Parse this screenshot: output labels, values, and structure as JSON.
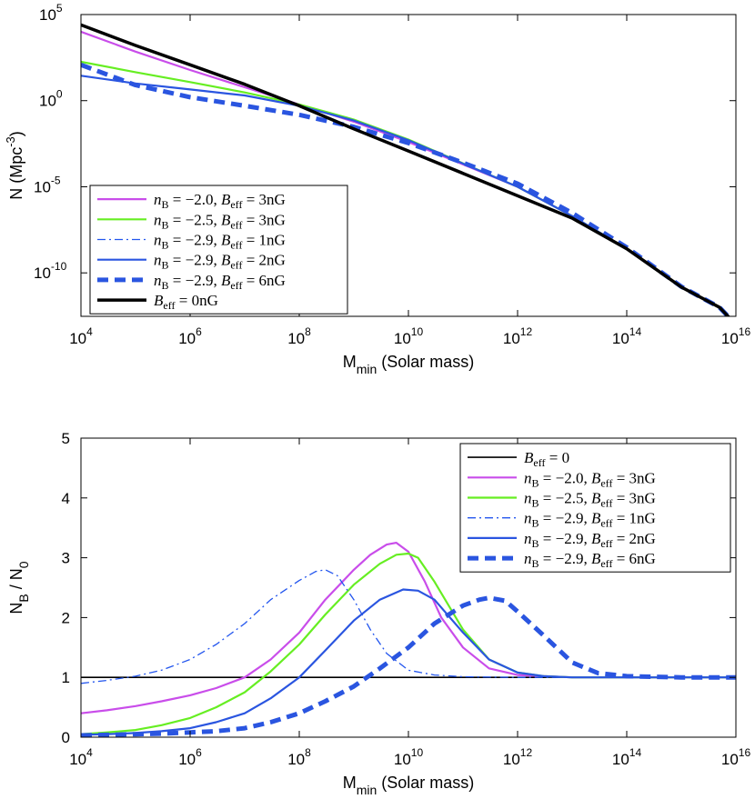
{
  "chart_data": [
    {
      "type": "line",
      "id": "top",
      "xscale": "log",
      "yscale": "log",
      "xlim": [
        10000,
        1e+16
      ],
      "ylim": [
        3e-13,
        100000
      ],
      "xlabel": {
        "main": "M",
        "sub": "min",
        "rest": " (Solar mass)"
      },
      "ylabel": {
        "main": "N (Mpc",
        "sup": "-3",
        "end": ")"
      },
      "xticks": [
        {
          "value": 10000.0,
          "base": "10",
          "exp": "4"
        },
        {
          "value": 1000000.0,
          "base": "10",
          "exp": "6"
        },
        {
          "value": 100000000.0,
          "base": "10",
          "exp": "8"
        },
        {
          "value": 10000000000.0,
          "base": "10",
          "exp": "10"
        },
        {
          "value": 1000000000000.0,
          "base": "10",
          "exp": "12"
        },
        {
          "value": 100000000000000.0,
          "base": "10",
          "exp": "14"
        },
        {
          "value": 1e+16,
          "base": "10",
          "exp": "16"
        }
      ],
      "yticks": [
        {
          "value": 100000.0,
          "base": "10",
          "exp": "5"
        },
        {
          "value": 1,
          "base": "10",
          "exp": "0"
        },
        {
          "value": 1e-05,
          "base": "10",
          "exp": "-5"
        },
        {
          "value": 1e-10,
          "base": "10",
          "exp": "-10"
        }
      ],
      "legend": {
        "position": "bottom-left"
      },
      "series": [
        {
          "name": "nB=-2.0, Beff=3nG",
          "nB": "-2.0",
          "Beff": "3nG",
          "color": "#c94dea",
          "style": "solid",
          "width": 2.2,
          "x": [
            10000.0,
            100000.0,
            1000000.0,
            10000000.0,
            100000000.0,
            1000000000.0,
            10000000000.0,
            100000000000.0,
            1000000000000.0,
            10000000000000.0,
            100000000000000.0,
            1000000000000000.0,
            5000000000000000.0,
            1e+16
          ],
          "y": [
            10000,
            700,
            60,
            6,
            0.6,
            0.06,
            0.004,
            0.0002,
            1e-05,
            2e-07,
            2.5e-09,
            1.5e-11,
            1e-12,
            1e-13
          ]
        },
        {
          "name": "nB=-2.5, Beff=3nG",
          "nB": "-2.5",
          "Beff": "3nG",
          "color": "#66ee22",
          "style": "solid",
          "width": 2.2,
          "x": [
            10000.0,
            100000.0,
            1000000.0,
            10000000.0,
            100000000.0,
            1000000000.0,
            10000000000.0,
            100000000000.0,
            1000000000000.0,
            10000000000000.0,
            100000000000000.0,
            1000000000000000.0,
            5000000000000000.0,
            1e+16
          ],
          "y": [
            180,
            45,
            12,
            3,
            0.6,
            0.08,
            0.0055,
            0.00023,
            1e-05,
            2e-07,
            2.5e-09,
            1.5e-11,
            1e-12,
            1e-13
          ]
        },
        {
          "name": "nB=-2.9, Beff=1nG",
          "nB": "-2.9",
          "Beff": "1nG",
          "color": "#2255ee",
          "style": "dashdot",
          "width": 1.3,
          "x": [
            10000.0,
            100000.0,
            1000000.0,
            10000000.0,
            100000000.0,
            1000000000.0,
            10000000000.0,
            100000000000.0,
            1000000000000.0,
            10000000000000.0,
            100000000000000.0,
            1000000000000000.0,
            5000000000000000.0,
            1e+16
          ],
          "y": [
            25000,
            1600,
            120,
            9,
            0.5,
            0.023,
            0.0012,
            6e-05,
            3e-06,
            1.5e-07,
            2.5e-09,
            1.5e-11,
            1e-12,
            1e-13
          ]
        },
        {
          "name": "nB=-2.9, Beff=2nG",
          "nB": "-2.9",
          "Beff": "2nG",
          "color": "#2a55e0",
          "style": "solid",
          "width": 2.2,
          "x": [
            10000.0,
            100000.0,
            1000000.0,
            10000000.0,
            100000000.0,
            1000000000.0,
            10000000000.0,
            100000000000.0,
            1000000000000.0,
            10000000000000.0,
            100000000000000.0,
            1000000000000000.0,
            5000000000000000.0,
            1e+16
          ],
          "y": [
            28,
            10,
            4.5,
            2,
            0.5,
            0.07,
            0.005,
            0.00022,
            1e-05,
            2e-07,
            2.5e-09,
            1.5e-11,
            1e-12,
            1e-13
          ]
        },
        {
          "name": "nB=-2.9, Beff=6nG",
          "nB": "-2.9",
          "Beff": "6nG",
          "color": "#2a55e0",
          "style": "dashed",
          "width": 5,
          "x": [
            10000.0,
            100000.0,
            1000000.0,
            10000000.0,
            100000000.0,
            1000000000.0,
            10000000000.0,
            100000000000.0,
            1000000000000.0,
            10000000000000.0,
            100000000000000.0,
            1000000000000000.0,
            5000000000000000.0,
            1e+16
          ],
          "y": [
            120,
            8,
            1.6,
            0.5,
            0.15,
            0.03,
            0.0035,
            0.00025,
            1.5e-05,
            3e-07,
            3e-09,
            1.6e-11,
            1e-12,
            1e-13
          ]
        },
        {
          "name": "Beff=0nG",
          "nB": "",
          "Beff": "0nG",
          "color": "#000000",
          "style": "solid",
          "width": 3.5,
          "x": [
            10000.0,
            100000.0,
            1000000.0,
            10000000.0,
            100000000.0,
            1000000000.0,
            10000000000.0,
            100000000000.0,
            1000000000000.0,
            10000000000000.0,
            100000000000000.0,
            1000000000000000.0,
            5000000000000000.0,
            1e+16
          ],
          "y": [
            25000,
            1600,
            120,
            9,
            0.5,
            0.023,
            0.0012,
            6e-05,
            3e-06,
            1.5e-07,
            2.5e-09,
            1.5e-11,
            1e-12,
            1e-13
          ]
        }
      ]
    },
    {
      "type": "line",
      "id": "bottom",
      "xscale": "log",
      "yscale": "linear",
      "xlim": [
        10000,
        1e+16
      ],
      "ylim": [
        0,
        5
      ],
      "xlabel": {
        "main": "M",
        "sub": "min",
        "rest": " (Solar mass)"
      },
      "ylabel": {
        "main": "N",
        "sub": "B",
        "mid": " / N",
        "sub2": "0"
      },
      "xticks": [
        {
          "value": 10000.0,
          "base": "10",
          "exp": "4"
        },
        {
          "value": 1000000.0,
          "base": "10",
          "exp": "6"
        },
        {
          "value": 100000000.0,
          "base": "10",
          "exp": "8"
        },
        {
          "value": 10000000000.0,
          "base": "10",
          "exp": "10"
        },
        {
          "value": 1000000000000.0,
          "base": "10",
          "exp": "12"
        },
        {
          "value": 100000000000000.0,
          "base": "10",
          "exp": "14"
        },
        {
          "value": 1e+16,
          "base": "10",
          "exp": "16"
        }
      ],
      "yticks": [
        {
          "value": 0,
          "label": "0"
        },
        {
          "value": 1,
          "label": "1"
        },
        {
          "value": 2,
          "label": "2"
        },
        {
          "value": 3,
          "label": "3"
        },
        {
          "value": 4,
          "label": "4"
        },
        {
          "value": 5,
          "label": "5"
        }
      ],
      "legend": {
        "position": "top-right"
      },
      "series": [
        {
          "name": "Beff=0",
          "nB": "",
          "Beff": "0",
          "color": "#000000",
          "style": "solid",
          "width": 1.6,
          "x": [
            10000.0,
            1e+16
          ],
          "y": [
            1,
            1
          ]
        },
        {
          "name": "nB=-2.0, Beff=3nG",
          "nB": "-2.0",
          "Beff": "3nG",
          "color": "#c94dea",
          "style": "solid",
          "width": 2.2,
          "x": [
            10000.0,
            30000.0,
            100000.0,
            300000.0,
            1000000.0,
            3000000.0,
            10000000.0,
            30000000.0,
            100000000.0,
            300000000.0,
            1000000000.0,
            2000000000.0,
            4000000000.0,
            6000000000.0,
            10000000000.0,
            20000000000.0,
            40000000000.0,
            100000000000.0,
            300000000000.0,
            1000000000000.0,
            10000000000000.0,
            100000000000000.0,
            1000000000000000.0,
            1e+16
          ],
          "y": [
            0.4,
            0.45,
            0.52,
            0.6,
            0.7,
            0.82,
            1.0,
            1.3,
            1.75,
            2.3,
            2.8,
            3.05,
            3.22,
            3.25,
            3.1,
            2.6,
            2.0,
            1.5,
            1.15,
            1.04,
            1.0,
            1.0,
            1.0,
            1.0
          ]
        },
        {
          "name": "nB=-2.5, Beff=3nG",
          "nB": "-2.5",
          "Beff": "3nG",
          "color": "#66ee22",
          "style": "solid",
          "width": 2.2,
          "x": [
            10000.0,
            30000.0,
            100000.0,
            300000.0,
            1000000.0,
            3000000.0,
            10000000.0,
            30000000.0,
            100000000.0,
            300000000.0,
            1000000000.0,
            3000000000.0,
            6000000000.0,
            10000000000.0,
            15000000000.0,
            30000000000.0,
            100000000000.0,
            300000000000.0,
            1000000000000.0,
            3000000000000.0,
            10000000000000.0,
            100000000000000.0,
            1000000000000000.0,
            1e+16
          ],
          "y": [
            0.05,
            0.08,
            0.12,
            0.2,
            0.32,
            0.5,
            0.75,
            1.1,
            1.55,
            2.05,
            2.55,
            2.9,
            3.05,
            3.07,
            3.0,
            2.6,
            1.8,
            1.3,
            1.08,
            1.02,
            1.0,
            1.0,
            1.0,
            1.0
          ]
        },
        {
          "name": "nB=-2.9, Beff=1nG",
          "nB": "-2.9",
          "Beff": "1nG",
          "color": "#2255ee",
          "style": "dashdot",
          "width": 1.3,
          "x": [
            10000.0,
            30000.0,
            100000.0,
            300000.0,
            1000000.0,
            3000000.0,
            10000000.0,
            30000000.0,
            100000000.0,
            200000000.0,
            300000000.0,
            500000000.0,
            1000000000.0,
            2000000000.0,
            4000000000.0,
            10000000000.0,
            30000000000.0,
            100000000000.0,
            1000000000000.0,
            10000000000000.0,
            100000000000000.0,
            1000000000000000.0,
            1e+16
          ],
          "y": [
            0.9,
            0.95,
            1.02,
            1.12,
            1.3,
            1.55,
            1.9,
            2.3,
            2.62,
            2.77,
            2.8,
            2.7,
            2.3,
            1.8,
            1.4,
            1.12,
            1.04,
            1.01,
            1.0,
            1.0,
            1.0,
            1.0,
            1.0
          ]
        },
        {
          "name": "nB=-2.9, Beff=2nG",
          "nB": "-2.9",
          "Beff": "2nG",
          "color": "#2a55e0",
          "style": "solid",
          "width": 2.2,
          "x": [
            10000.0,
            30000.0,
            100000.0,
            300000.0,
            1000000.0,
            3000000.0,
            10000000.0,
            30000000.0,
            100000000.0,
            300000000.0,
            1000000000.0,
            3000000000.0,
            8000000000.0,
            15000000000.0,
            30000000000.0,
            100000000000.0,
            300000000000.0,
            1000000000000.0,
            3000000000000.0,
            10000000000000.0,
            100000000000000.0,
            1000000000000000.0,
            1e+16
          ],
          "y": [
            0.04,
            0.05,
            0.07,
            0.1,
            0.15,
            0.25,
            0.4,
            0.65,
            1.0,
            1.45,
            1.95,
            2.3,
            2.47,
            2.45,
            2.3,
            1.75,
            1.3,
            1.08,
            1.02,
            1.0,
            1.0,
            1.0,
            1.0
          ]
        },
        {
          "name": "nB=-2.9, Beff=6nG",
          "nB": "-2.9",
          "Beff": "6nG",
          "color": "#2a55e0",
          "style": "dashed",
          "width": 5,
          "x": [
            10000.0,
            30000.0,
            100000.0,
            300000.0,
            1000000.0,
            3000000.0,
            10000000.0,
            30000000.0,
            100000000.0,
            300000000.0,
            1000000000.0,
            3000000000.0,
            10000000000.0,
            30000000000.0,
            100000000000.0,
            200000000000.0,
            300000000000.0,
            600000000000.0,
            1000000000000.0,
            3000000000000.0,
            10000000000000.0,
            30000000000000.0,
            100000000000000.0,
            1000000000000000.0,
            1e+16
          ],
          "y": [
            0.03,
            0.04,
            0.05,
            0.06,
            0.08,
            0.1,
            0.15,
            0.25,
            0.4,
            0.6,
            0.85,
            1.15,
            1.5,
            1.9,
            2.2,
            2.3,
            2.33,
            2.28,
            2.1,
            1.7,
            1.25,
            1.07,
            1.02,
            1.0,
            1.0
          ]
        }
      ]
    }
  ]
}
